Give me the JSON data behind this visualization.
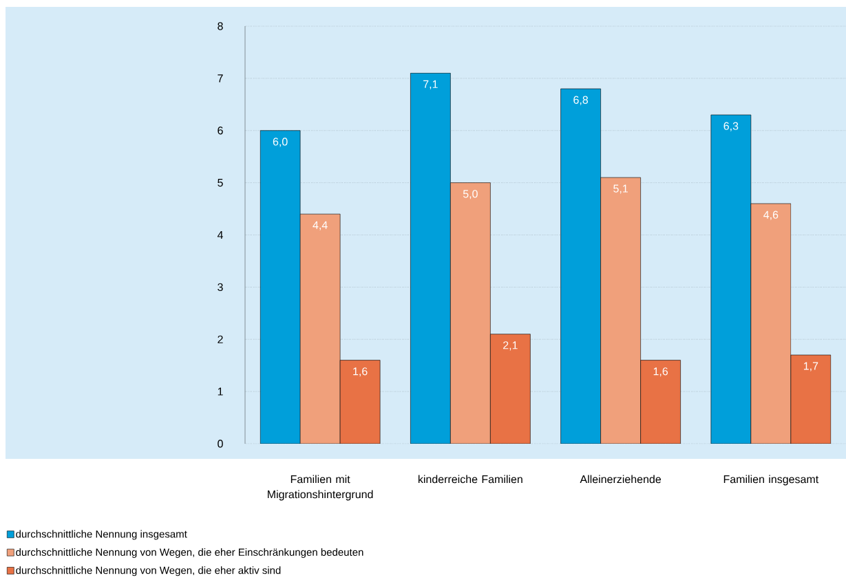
{
  "chart_data": {
    "type": "bar",
    "categories": [
      "Familien mit Migrationshintergrund",
      "kinderreiche Familien",
      "Alleinerziehende",
      "Familien insgesamt"
    ],
    "series": [
      {
        "name": "durchschnittliche Nennung insgesamt",
        "color": "#009fda",
        "values": [
          6.0,
          7.1,
          6.8,
          6.3
        ],
        "value_labels": [
          "6,0",
          "7,1",
          "6,8",
          "6,3"
        ]
      },
      {
        "name": "durchschnittliche Nennung von Wegen, die eher Einschränkungen bedeuten",
        "color": "#f0a07b",
        "values": [
          4.4,
          5.0,
          5.1,
          4.6
        ],
        "value_labels": [
          "4,4",
          "5,0",
          "5,1",
          "4,6"
        ]
      },
      {
        "name": "durchschnittliche Nennung von Wegen, die eher aktiv sind",
        "color": "#e87245",
        "values": [
          1.6,
          2.1,
          1.6,
          1.7
        ],
        "value_labels": [
          "1,6",
          "2,1",
          "1,6",
          "1,7"
        ]
      }
    ],
    "ylim": [
      0,
      8
    ],
    "yticks": [
      0,
      1,
      2,
      3,
      4,
      5,
      6,
      7,
      8
    ],
    "grid": "y",
    "legend": "bottom"
  }
}
